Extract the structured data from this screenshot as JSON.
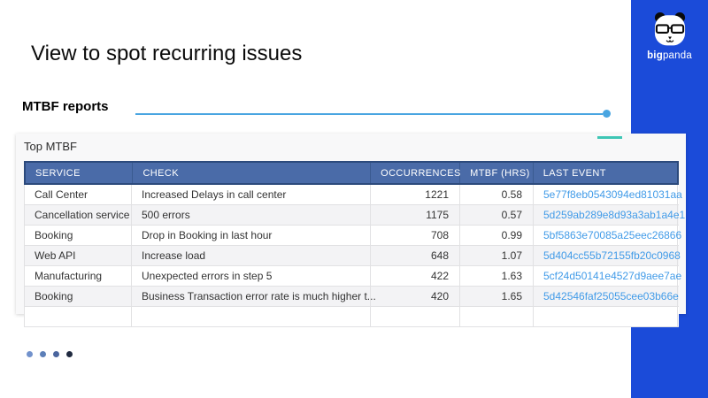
{
  "slide": {
    "title": "View to spot recurring issues",
    "section_label": "MTBF reports"
  },
  "brand": {
    "name_bold": "big",
    "name_regular": "panda"
  },
  "panel": {
    "title": "Top MTBF"
  },
  "table": {
    "columns": [
      "SERVICE",
      "CHECK",
      "OCCURRENCES",
      "MTBF (HRS)",
      "LAST EVENT"
    ],
    "rows": [
      {
        "service": "Call Center",
        "check": "Increased Delays in call center",
        "occurrences": "1221",
        "mtbf": "0.58",
        "last_event": "5e77f8eb0543094ed81031aa"
      },
      {
        "service": "Cancellation service",
        "check": "500 errors",
        "occurrences": "1175",
        "mtbf": "0.57",
        "last_event": "5d259ab289e8d93a3ab1a4e1"
      },
      {
        "service": "Booking",
        "check": "Drop in Booking in last hour",
        "occurrences": "708",
        "mtbf": "0.99",
        "last_event": "5bf5863e70085a25eec26866"
      },
      {
        "service": "Web API",
        "check": "Increase load",
        "occurrences": "648",
        "mtbf": "1.07",
        "last_event": "5d404cc55b72155fb20c0968"
      },
      {
        "service": "Manufacturing",
        "check": "Unexpected errors in step 5",
        "occurrences": "422",
        "mtbf": "1.63",
        "last_event": "5cf24d50141e4527d9aee7ae"
      },
      {
        "service": "Booking",
        "check": "Business Transaction error rate is much higher t...",
        "occurrences": "420",
        "mtbf": "1.65",
        "last_event": "5d42546faf25055cee03b66e"
      }
    ]
  },
  "pagination": {
    "dot_colors": [
      "#7292cc",
      "#5c7fb8",
      "#4a659e",
      "#202a40"
    ]
  },
  "colors": {
    "sidebar_blue": "#1b4bd9",
    "header_blue": "#4a6ba8",
    "header_border": "#2c4a7c",
    "link_blue": "#419be8",
    "divider_blue": "#49a5e1",
    "teal_accent": "#3ec6b5",
    "panel_bg": "#f8f8f9"
  }
}
